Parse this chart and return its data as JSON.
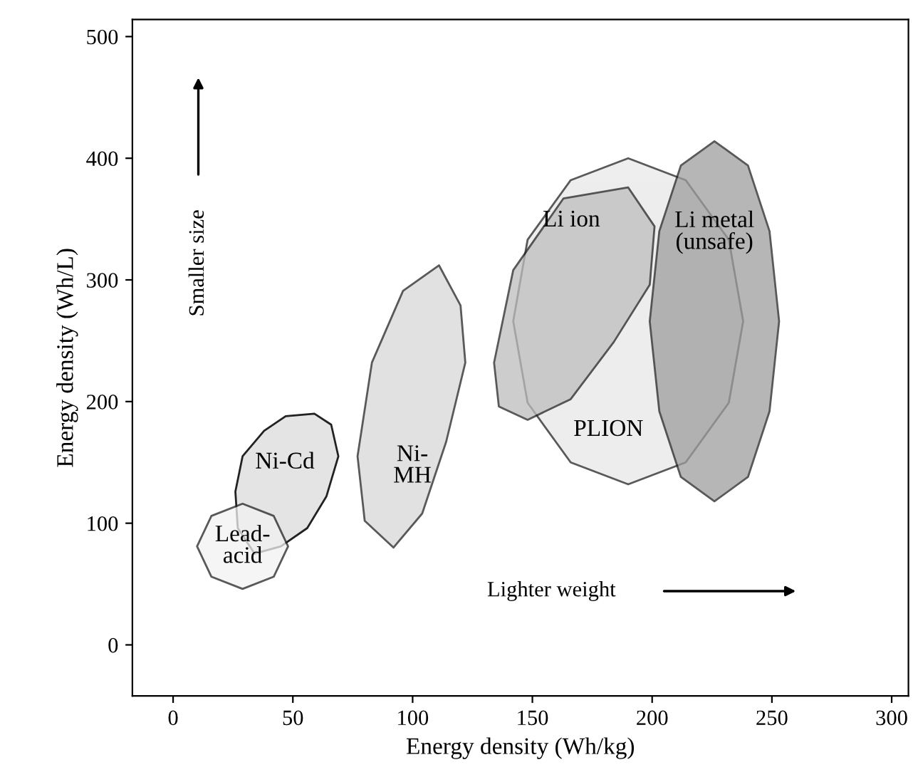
{
  "chart_data": {
    "type": "area",
    "xlabel": "Energy density (Wh/kg)",
    "ylabel": "Energy density (Wh/L)",
    "xlim": [
      -17,
      307
    ],
    "ylim": [
      -42,
      514
    ],
    "xticks": [
      0,
      50,
      100,
      150,
      200,
      250,
      300
    ],
    "yticks": [
      0,
      100,
      200,
      300,
      400,
      500
    ],
    "grid": false,
    "line_style": "solid",
    "series": [
      {
        "name": "Ni-Cd",
        "color": "#e4e4e4",
        "x": [
          59,
          66,
          69,
          64,
          56,
          45,
          34,
          27,
          26,
          29,
          38,
          47
        ],
        "values": [
          190,
          181,
          155,
          122,
          96,
          81,
          75,
          96,
          126,
          155,
          176,
          188
        ]
      },
      {
        "name": "Lead-\nacid",
        "color": "#f2f2f2",
        "x": [
          48,
          42,
          29,
          16,
          10,
          16,
          29,
          42
        ],
        "values": [
          81,
          106,
          116,
          106,
          81,
          56,
          46,
          56
        ]
      },
      {
        "name": "Ni-\nMH",
        "color": "#d8d8d8",
        "x": [
          111,
          120,
          122,
          114,
          104,
          92,
          80,
          77,
          83,
          96
        ],
        "values": [
          312,
          279,
          232,
          167,
          108,
          80,
          102,
          155,
          232,
          291
        ]
      },
      {
        "name": "PLION",
        "color": "#e8e8e8",
        "x": [
          238,
          232,
          214,
          190,
          166,
          148,
          142,
          148,
          166,
          190,
          214,
          232
        ],
        "values": [
          266,
          333,
          382,
          400,
          382,
          333,
          266,
          199,
          150,
          132,
          150,
          199
        ]
      },
      {
        "name": "Li ion",
        "color": "#bdbdbd",
        "x": [
          190,
          201,
          199,
          184,
          166,
          148,
          136,
          134,
          142,
          163
        ],
        "values": [
          376,
          344,
          296,
          249,
          202,
          185,
          196,
          232,
          308,
          367
        ]
      },
      {
        "name": "Li metal\n(unsafe)",
        "color": "#9e9e9e",
        "x": [
          253,
          249,
          240,
          226,
          212,
          203,
          199,
          203,
          212,
          226,
          240,
          249
        ],
        "values": [
          266,
          340,
          394,
          414,
          394,
          340,
          266,
          192,
          138,
          118,
          138,
          192
        ]
      }
    ],
    "annotations": [
      "Smaller size",
      "Lighter weight"
    ]
  }
}
